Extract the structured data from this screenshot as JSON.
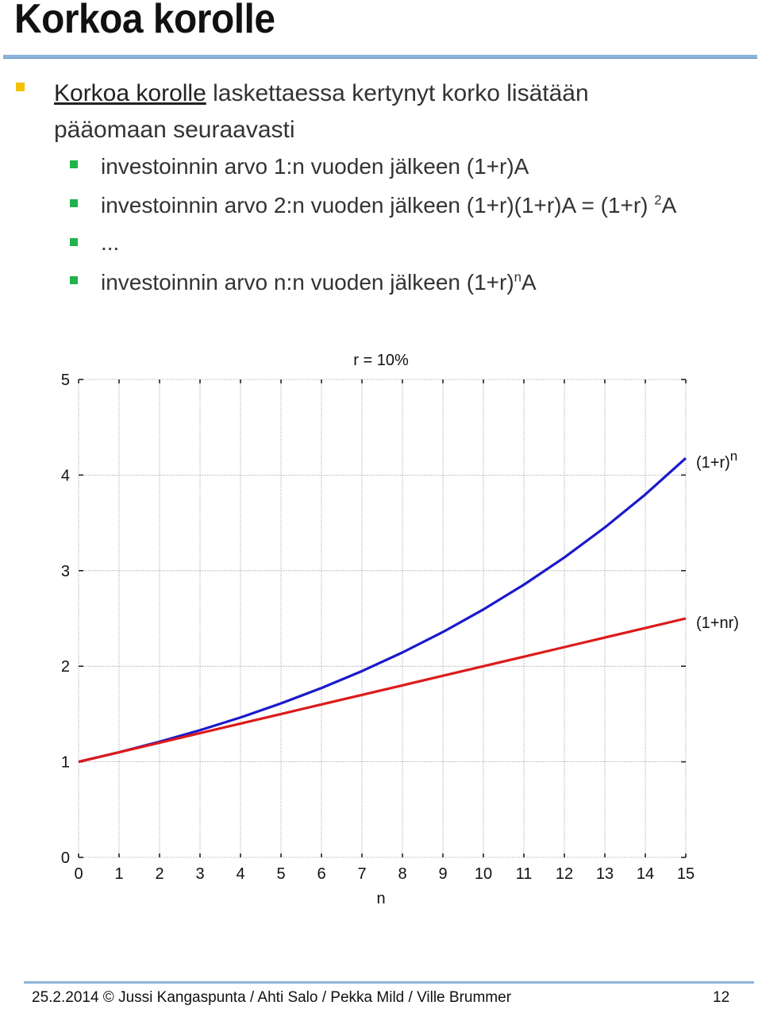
{
  "title": "Korkoa korolle",
  "bullet": {
    "term": "Korkoa korolle",
    "rest": " laskettaessa kertynyt korko lisätään",
    "line2": "pääomaan seuraavasti"
  },
  "sub_bullets": [
    {
      "text": "investoinnin arvo 1:n vuoden jälkeen (1+r)A"
    },
    {
      "text": "investoinnin arvo 2:n vuoden jälkeen (1+r)(1+r)A = (1+r)",
      "sup": "2",
      "after": "A"
    },
    {
      "text": "..."
    },
    {
      "text": "investoinnin arvo n:n vuoden jälkeen (1+r)",
      "sup": "n",
      "after": "A"
    }
  ],
  "colors": {
    "bullet_l1": "#f2c200",
    "bullet_l2": "#22b24c",
    "accent_rule": "#8fb4d9",
    "series_compound": "#1a1acc",
    "series_simple": "#dd1a1a"
  },
  "chart_data": {
    "type": "line",
    "title": "r = 10%",
    "xlabel": "n",
    "ylabel": "",
    "xlim": [
      0,
      15
    ],
    "ylim": [
      0,
      5
    ],
    "xticks": [
      "0",
      "1",
      "2",
      "3",
      "4",
      "5",
      "6",
      "7",
      "8",
      "9",
      "10",
      "11",
      "12",
      "13",
      "14",
      "15"
    ],
    "yticks": [
      "0",
      "1",
      "2",
      "3",
      "4",
      "5"
    ],
    "grid": true,
    "x": [
      0,
      1,
      2,
      3,
      4,
      5,
      6,
      7,
      8,
      9,
      10,
      11,
      12,
      13,
      14,
      15
    ],
    "series": [
      {
        "name": "(1+r)",
        "name_sup": "n",
        "color": "#1a1acc",
        "values": [
          1.0,
          1.1,
          1.21,
          1.331,
          1.464,
          1.611,
          1.772,
          1.949,
          2.144,
          2.358,
          2.594,
          2.853,
          3.138,
          3.452,
          3.797,
          4.177
        ]
      },
      {
        "name": "(1+nr)",
        "color": "#dd1a1a",
        "values": [
          1.0,
          1.1,
          1.2,
          1.3,
          1.4,
          1.5,
          1.6,
          1.7,
          1.8,
          1.9,
          2.0,
          2.1,
          2.2,
          2.3,
          2.4,
          2.5
        ]
      }
    ]
  },
  "footer": {
    "text": "25.2.2014 © Jussi Kangaspunta / Ahti Salo / Pekka Mild / Ville Brummer",
    "page": "12"
  }
}
